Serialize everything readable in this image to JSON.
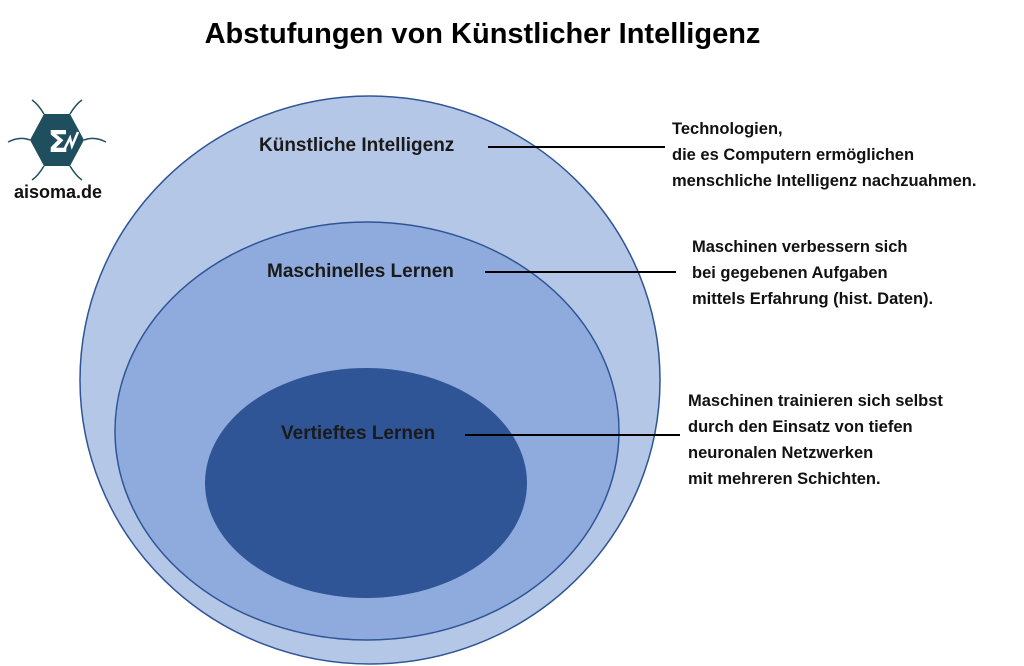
{
  "title": "Abstufungen von Künstlicher Intelligenz",
  "logo": {
    "text": "aisoma.de",
    "icon": "sigma-hexagon-logo",
    "color": "#1f4e5f"
  },
  "colors": {
    "outer": "#b4c7e7",
    "middle": "#8faadc",
    "inner": "#2f5597",
    "border": "#2f5597"
  },
  "levels": [
    {
      "label": "Künstliche Intelligenz",
      "description": [
        "Technologien,",
        "die es Computern ermöglichen",
        "menschliche Intelligenz nachzuahmen."
      ]
    },
    {
      "label": "Maschinelles Lernen",
      "description": [
        "Maschinen verbessern sich",
        "bei gegebenen Aufgaben",
        "mittels Erfahrung (hist. Daten)."
      ]
    },
    {
      "label": "Vertieftes Lernen",
      "description": [
        "Maschinen trainieren sich selbst",
        "durch den Einsatz von tiefen",
        "neuronalen Netzwerken",
        "mit mehreren Schichten."
      ]
    }
  ]
}
